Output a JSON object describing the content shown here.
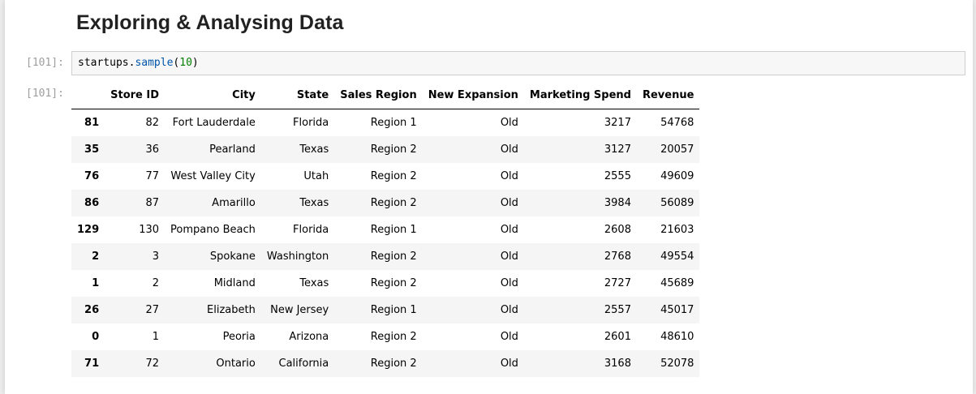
{
  "heading": "Exploring & Analysing Data",
  "input_cell": {
    "prompt": "[101]:",
    "code": {
      "object": "startups",
      "dot": ".",
      "method": "sample",
      "open": "(",
      "arg": "10",
      "close": ")"
    }
  },
  "output_cell": {
    "prompt": "[101]:",
    "table": {
      "columns": [
        "",
        "Store ID",
        "City",
        "State",
        "Sales Region",
        "New Expansion",
        "Marketing Spend",
        "Revenue"
      ],
      "rows": [
        {
          "index": "81",
          "store_id": "82",
          "city": "Fort Lauderdale",
          "state": "Florida",
          "region": "Region 1",
          "expansion": "Old",
          "marketing": "3217",
          "revenue": "54768"
        },
        {
          "index": "35",
          "store_id": "36",
          "city": "Pearland",
          "state": "Texas",
          "region": "Region 2",
          "expansion": "Old",
          "marketing": "3127",
          "revenue": "20057"
        },
        {
          "index": "76",
          "store_id": "77",
          "city": "West Valley City",
          "state": "Utah",
          "region": "Region 2",
          "expansion": "Old",
          "marketing": "2555",
          "revenue": "49609"
        },
        {
          "index": "86",
          "store_id": "87",
          "city": "Amarillo",
          "state": "Texas",
          "region": "Region 2",
          "expansion": "Old",
          "marketing": "3984",
          "revenue": "56089"
        },
        {
          "index": "129",
          "store_id": "130",
          "city": "Pompano Beach",
          "state": "Florida",
          "region": "Region 1",
          "expansion": "Old",
          "marketing": "2608",
          "revenue": "21603"
        },
        {
          "index": "2",
          "store_id": "3",
          "city": "Spokane",
          "state": "Washington",
          "region": "Region 2",
          "expansion": "Old",
          "marketing": "2768",
          "revenue": "49554"
        },
        {
          "index": "1",
          "store_id": "2",
          "city": "Midland",
          "state": "Texas",
          "region": "Region 2",
          "expansion": "Old",
          "marketing": "2727",
          "revenue": "45689"
        },
        {
          "index": "26",
          "store_id": "27",
          "city": "Elizabeth",
          "state": "New Jersey",
          "region": "Region 1",
          "expansion": "Old",
          "marketing": "2557",
          "revenue": "45017"
        },
        {
          "index": "0",
          "store_id": "1",
          "city": "Peoria",
          "state": "Arizona",
          "region": "Region 2",
          "expansion": "Old",
          "marketing": "2601",
          "revenue": "48610"
        },
        {
          "index": "71",
          "store_id": "72",
          "city": "Ontario",
          "state": "California",
          "region": "Region 2",
          "expansion": "Old",
          "marketing": "3168",
          "revenue": "52078"
        }
      ]
    }
  }
}
